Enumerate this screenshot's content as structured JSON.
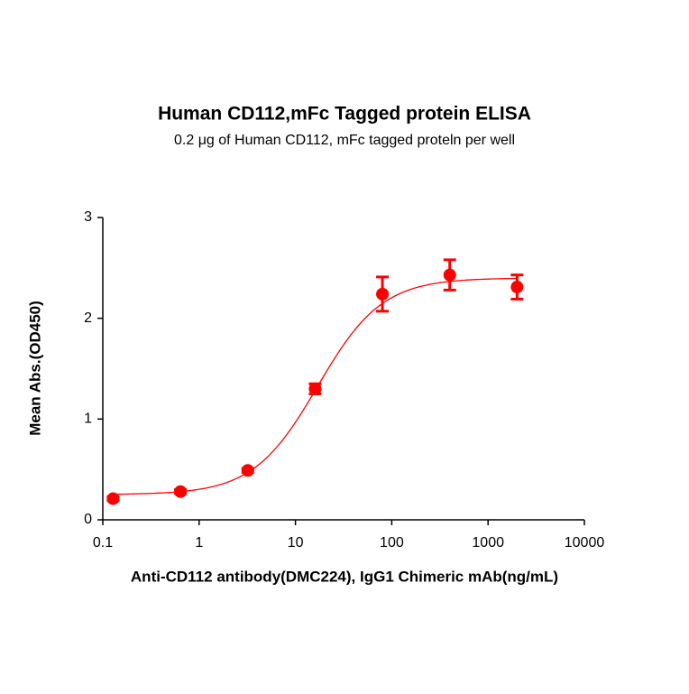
{
  "chart_data": {
    "type": "scatter",
    "title": "Human CD112,mFc Tagged protein ELISA",
    "subtitle": "0.2 μg of Human CD112, mFc tagged proteln per well",
    "x_label": "Anti-CD112 antibody(DMC224), IgG1 Chimeric mAb(ng/mL)",
    "y_label": "Mean Abs.(OD450)",
    "x_scale": "log",
    "xlim": [
      0.1,
      10000
    ],
    "xticks": [
      0.1,
      1,
      10,
      100,
      1000,
      10000
    ],
    "ylim": [
      0,
      3
    ],
    "yticks": [
      0,
      1,
      2,
      3
    ],
    "color": "#ff0000",
    "x": [
      0.128,
      0.64,
      3.2,
      16,
      80,
      400,
      2000
    ],
    "values": [
      0.21,
      0.28,
      0.49,
      1.3,
      2.24,
      2.43,
      2.31
    ],
    "errors": [
      0.02,
      0.02,
      0.02,
      0.05,
      0.17,
      0.15,
      0.12
    ],
    "fit": {
      "bottom": 0.25,
      "top": 2.4,
      "ec50": 17,
      "hill": 1.3
    }
  }
}
